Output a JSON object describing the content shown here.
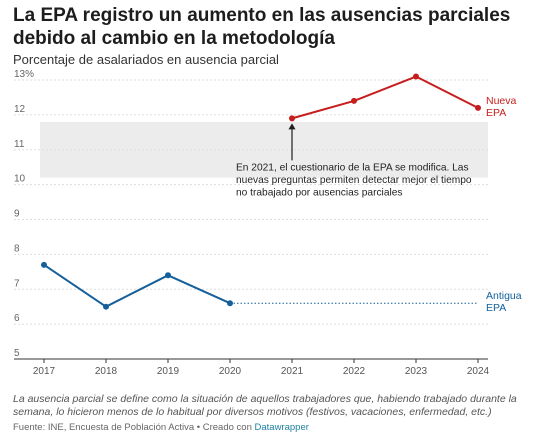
{
  "header": {
    "title": "La EPA registro un aumento en las ausencias parciales debido al cambio en la metodología",
    "subtitle": "Porcentaje de asalariados en ausencia parcial"
  },
  "chart_data": {
    "type": "line",
    "x": [
      2017,
      2018,
      2019,
      2020,
      2021,
      2022,
      2023,
      2024
    ],
    "ylim": [
      5,
      13
    ],
    "yticks": [
      5,
      6,
      7,
      8,
      9,
      10,
      11,
      12,
      13
    ],
    "ytick_labels": [
      "5",
      "6",
      "7",
      "8",
      "9",
      "10",
      "11",
      "12",
      "13%"
    ],
    "grid": true,
    "highlight_band": [
      10.2,
      11.8
    ],
    "series": [
      {
        "name": "Antigua EPA",
        "label_lines": [
          "Antigua",
          "EPA"
        ],
        "color": "#15609b",
        "x": [
          2017,
          2018,
          2019,
          2020
        ],
        "values": [
          7.7,
          6.5,
          7.4,
          6.6
        ],
        "dotted_extension_to": 2024
      },
      {
        "name": "Nueva EPA",
        "label_lines": [
          "Nueva",
          "EPA"
        ],
        "color": "#c71e1d",
        "x": [
          2021,
          2022,
          2023,
          2024
        ],
        "values": [
          11.9,
          12.4,
          13.1,
          12.2
        ]
      }
    ],
    "annotation": {
      "lines": [
        "En 2021, el cuestionario de la EPA se modifica. Las",
        "nuevas preguntas permiten detectar mejor el tiempo",
        "no trabajado por ausencias parciales"
      ],
      "arrow_target_x": 2021,
      "arrow_target_y": 11.9
    }
  },
  "footer": {
    "notes": "La ausencia parcial se define como la situación de aquellos trabajadores que, habiendo trabajado durante la semana, lo hicieron menos de lo habitual por diversos motivos (festivos, vacaciones, enfermedad, etc.)",
    "source": "Fuente: INE, Encuesta de Población Activa • Creado con ",
    "credit_link": "Datawrapper"
  },
  "colors": {
    "old_series": "#15609b",
    "new_series": "#c71e1d",
    "band": "#ececec",
    "grid": "#dddddd",
    "axis": "#333333"
  }
}
